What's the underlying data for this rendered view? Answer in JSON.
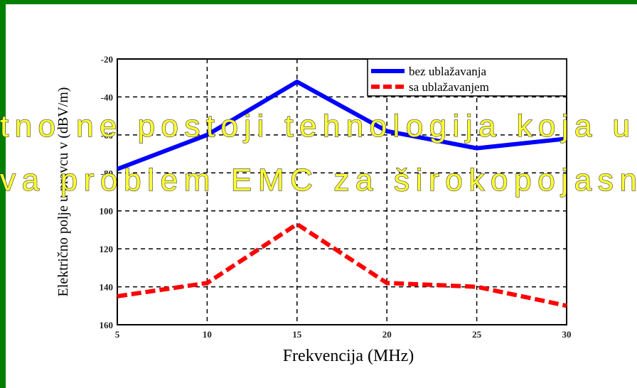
{
  "chart_data": {
    "type": "line",
    "x": [
      5,
      10,
      15,
      20,
      25,
      30
    ],
    "xlim": [
      5,
      30
    ],
    "xticks": [
      5,
      10,
      15,
      20,
      25,
      30
    ],
    "ylim": [
      -160,
      -20
    ],
    "yticks": [
      -20,
      -40,
      -60,
      -80,
      {
        "value": -100,
        "label": "100"
      },
      {
        "value": -120,
        "label": "120"
      },
      {
        "value": -140,
        "label": "140"
      },
      {
        "value": -160,
        "label": "160"
      }
    ],
    "xlabel": "Frekvencija (MHz)",
    "ylabel": "Električno polje u pravcu v (dBV/m)",
    "grid": true,
    "legend": "upper right",
    "series": [
      {
        "name": "bez ublažavanja",
        "color": "#0000ff",
        "values": [
          -78,
          -60,
          -32,
          -58,
          -67,
          -62
        ]
      },
      {
        "name": "sa ublažavanjem",
        "color": "#ff0000",
        "values": [
          -145,
          -138,
          -107,
          -138,
          -140,
          -150
        ]
      }
    ]
  },
  "overlay_text": [
    "tno ne postoji tehnologija koja u",
    "va problem EMC za širokopojasn"
  ]
}
